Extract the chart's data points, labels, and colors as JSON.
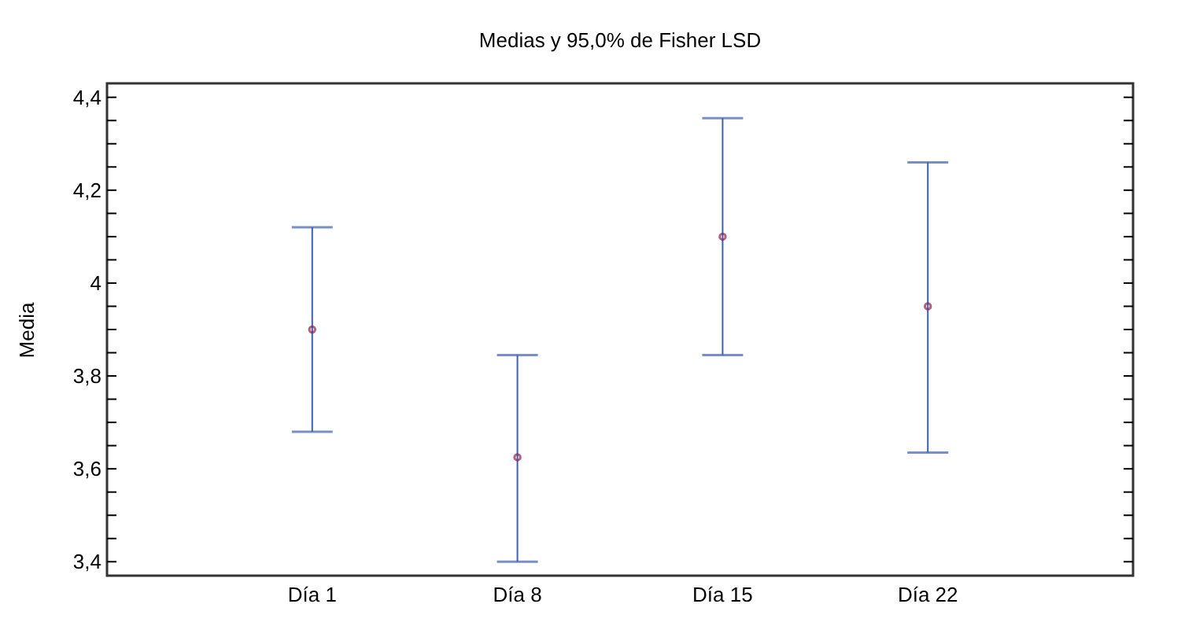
{
  "chart_data": {
    "type": "scatter",
    "title": "Medias y 95,0% de Fisher LSD",
    "ylabel": "Media",
    "categories": [
      "Día 1",
      "Día 8",
      "Día 15",
      "Día 22"
    ],
    "series": [
      {
        "color": "#8b2252",
        "values": [
          3.9,
          3.625,
          4.1,
          3.95
        ],
        "errors": [
          [
            3.68,
            4.12
          ],
          [
            3.4,
            3.845
          ],
          [
            3.845,
            4.355
          ],
          [
            3.635,
            4.26
          ]
        ]
      }
    ],
    "ylim": [
      3.37,
      4.43
    ],
    "yticks": [
      {
        "value": 3.4,
        "label": "3,4"
      },
      {
        "value": 3.45,
        "label": null
      },
      {
        "value": 3.5,
        "label": null
      },
      {
        "value": 3.55,
        "label": null
      },
      {
        "value": 3.6,
        "label": "3,6"
      },
      {
        "value": 3.65,
        "label": null
      },
      {
        "value": 3.7,
        "label": null
      },
      {
        "value": 3.75,
        "label": null
      },
      {
        "value": 3.8,
        "label": "3,8"
      },
      {
        "value": 3.85,
        "label": null
      },
      {
        "value": 3.9,
        "label": null
      },
      {
        "value": 3.95,
        "label": null
      },
      {
        "value": 4,
        "label": "4"
      },
      {
        "value": 4.05,
        "label": null
      },
      {
        "value": 4.1,
        "label": null
      },
      {
        "value": 4.15,
        "label": null
      },
      {
        "value": 4.2,
        "label": "4,2"
      },
      {
        "value": 4.25,
        "label": null
      },
      {
        "value": 4.3,
        "label": null
      },
      {
        "value": 4.35,
        "label": null
      },
      {
        "value": 4.4,
        "label": "4,4"
      }
    ],
    "grid": false,
    "marker": "circle"
  }
}
